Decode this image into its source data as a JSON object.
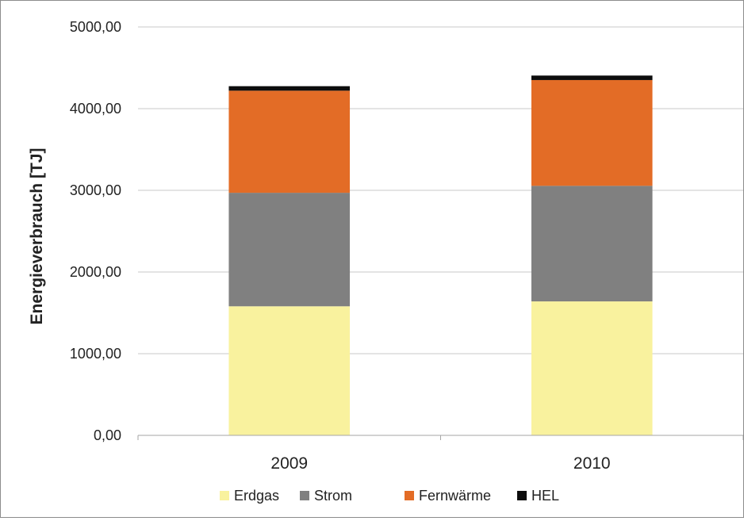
{
  "chart_data": {
    "type": "bar",
    "stacked": true,
    "title": "",
    "xlabel": "",
    "ylabel": "Energieverbrauch [TJ]",
    "ylim": [
      0,
      5000
    ],
    "yticks": [
      0,
      1000,
      2000,
      3000,
      4000,
      5000
    ],
    "ytick_labels": [
      "0,00",
      "1000,00",
      "2000,00",
      "3000,00",
      "4000,00",
      "5000,00"
    ],
    "categories": [
      "2009",
      "2010"
    ],
    "grid": true,
    "legend_position": "bottom",
    "series": [
      {
        "name": "Erdgas",
        "color": "#F9F29E",
        "values": [
          1580,
          1640
        ]
      },
      {
        "name": "Strom",
        "color": "#808080",
        "values": [
          1390,
          1415
        ]
      },
      {
        "name": "Fernwärme",
        "color": "#E36C26",
        "values": [
          1250,
          1295
        ]
      },
      {
        "name": "HEL",
        "color": "#0D0D0D",
        "values": [
          55,
          55
        ]
      }
    ]
  }
}
